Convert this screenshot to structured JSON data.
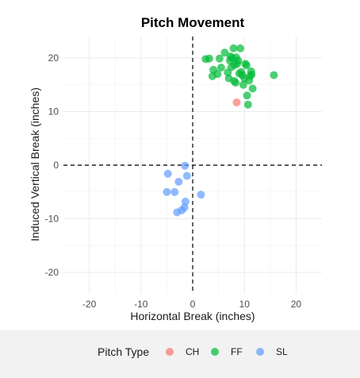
{
  "chart_data": {
    "type": "scatter",
    "title": "Pitch Movement",
    "xlabel": "Horizontal Break (inches)",
    "ylabel": "Induced Vertical Break (inches)",
    "xlim": [
      -25,
      25
    ],
    "ylim": [
      -24,
      24
    ],
    "xticks": [
      -20,
      -10,
      0,
      10,
      20
    ],
    "yticks": [
      -20,
      -10,
      0,
      10,
      20
    ],
    "grid": true,
    "reference_lines": {
      "x": 0,
      "y": 0,
      "style": "dashed"
    },
    "legend": {
      "title": "Pitch Type",
      "position": "bottom"
    },
    "series": [
      {
        "name": "CH",
        "color": "#F8766D",
        "points": [
          [
            8.5,
            11.7
          ]
        ]
      },
      {
        "name": "FF",
        "color": "#00BA38",
        "points": [
          [
            2.5,
            19.8
          ],
          [
            3.2,
            19.9
          ],
          [
            3.8,
            16.6
          ],
          [
            4.0,
            17.8
          ],
          [
            4.8,
            17.0
          ],
          [
            5.2,
            19.9
          ],
          [
            5.5,
            18.2
          ],
          [
            6.2,
            21.0
          ],
          [
            6.8,
            17.3
          ],
          [
            7.0,
            16.2
          ],
          [
            7.2,
            19.5
          ],
          [
            7.3,
            20.3
          ],
          [
            7.5,
            18.3
          ],
          [
            7.6,
            20.0
          ],
          [
            7.9,
            21.8
          ],
          [
            8.0,
            15.7
          ],
          [
            8.1,
            18.7
          ],
          [
            8.3,
            15.4
          ],
          [
            8.4,
            20.1
          ],
          [
            8.6,
            18.9
          ],
          [
            8.8,
            19.5
          ],
          [
            9.0,
            17.1
          ],
          [
            9.2,
            21.8
          ],
          [
            9.4,
            17.4
          ],
          [
            9.6,
            16.8
          ],
          [
            9.8,
            15.0
          ],
          [
            10.0,
            16.2
          ],
          [
            10.2,
            18.9
          ],
          [
            10.4,
            18.6
          ],
          [
            10.5,
            13.0
          ],
          [
            10.7,
            11.3
          ],
          [
            10.9,
            15.8
          ],
          [
            11.1,
            16.6
          ],
          [
            11.3,
            17.5
          ],
          [
            11.4,
            16.9
          ],
          [
            11.6,
            14.3
          ],
          [
            15.7,
            16.8
          ]
        ]
      },
      {
        "name": "SL",
        "color": "#619CFF",
        "points": [
          [
            -4.8,
            -1.6
          ],
          [
            -5.0,
            -5.0
          ],
          [
            -3.5,
            -5.0
          ],
          [
            -2.7,
            -3.1
          ],
          [
            -3.0,
            -8.8
          ],
          [
            -2.1,
            -8.4
          ],
          [
            -1.6,
            -7.9
          ],
          [
            -1.5,
            -0.1
          ],
          [
            -1.1,
            -2.0
          ],
          [
            -1.4,
            -6.8
          ],
          [
            1.6,
            -5.5
          ]
        ]
      }
    ]
  }
}
